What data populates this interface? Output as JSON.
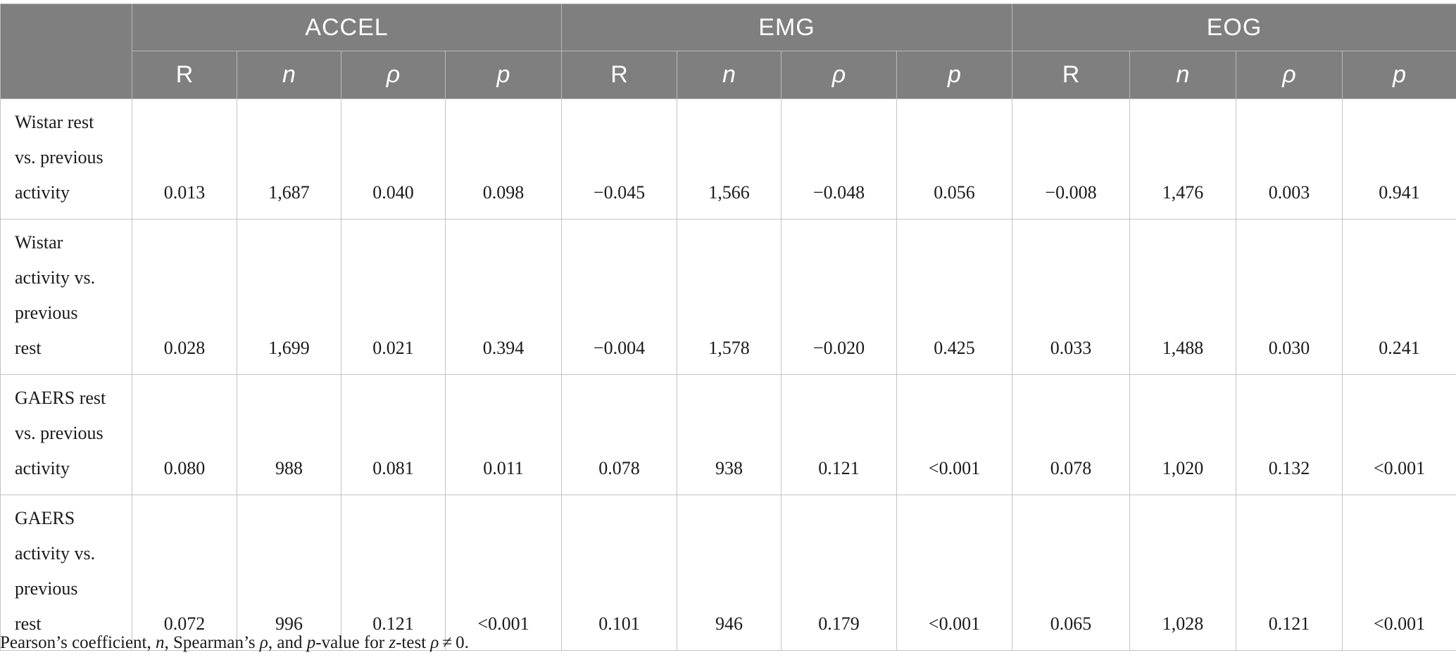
{
  "groups": [
    "ACCEL",
    "EMG",
    "EOG"
  ],
  "subheaders": {
    "r": "R",
    "n": "n",
    "rho": "ρ",
    "p": "p"
  },
  "rows": [
    {
      "label": [
        "Wistar rest",
        "vs. previous",
        "activity"
      ],
      "values": [
        "0.013",
        "1,687",
        "0.040",
        "0.098",
        "−0.045",
        "1,566",
        "−0.048",
        "0.056",
        "−0.008",
        "1,476",
        "0.003",
        "0.941"
      ]
    },
    {
      "label": [
        "Wistar",
        "activity vs.",
        "previous",
        "rest"
      ],
      "values": [
        "0.028",
        "1,699",
        "0.021",
        "0.394",
        "−0.004",
        "1,578",
        "−0.020",
        "0.425",
        "0.033",
        "1,488",
        "0.030",
        "0.241"
      ]
    },
    {
      "label": [
        "GAERS rest",
        "vs. previous",
        "activity"
      ],
      "values": [
        "0.080",
        "988",
        "0.081",
        "0.011",
        "0.078",
        "938",
        "0.121",
        "<0.001",
        "0.078",
        "1,020",
        "0.132",
        "<0.001"
      ]
    },
    {
      "label": [
        "GAERS",
        "activity vs.",
        "previous",
        "rest"
      ],
      "values": [
        "0.072",
        "996",
        "0.121",
        "<0.001",
        "0.101",
        "946",
        "0.179",
        "<0.001",
        "0.065",
        "1,028",
        "0.121",
        "<0.001"
      ]
    }
  ],
  "caption": {
    "part1": "Pearson’s coefficient, ",
    "n": "n",
    "part2": ", Spearman’s ",
    "rho": "ρ",
    "part3": ", and ",
    "p": "p",
    "part4": "-value for ",
    "z": "z",
    "part5": "-test ",
    "rho2": "ρ",
    "part6": " ≠ 0."
  }
}
